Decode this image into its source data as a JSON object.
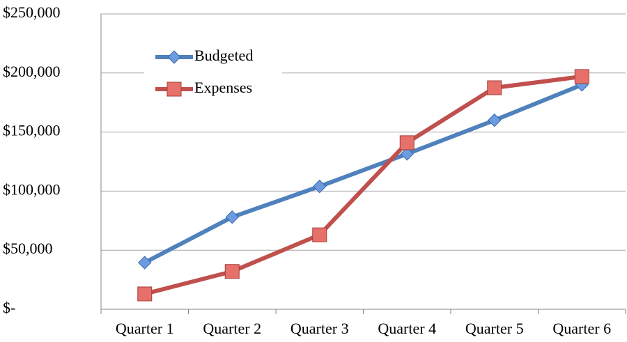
{
  "chart_data": {
    "type": "line",
    "categories": [
      "Quarter 1",
      "Quarter 2",
      "Quarter 3",
      "Quarter 4",
      "Quarter 5",
      "Quarter 6"
    ],
    "series": [
      {
        "name": "Budgeted",
        "color": "#4f81bd",
        "marker": "diamond",
        "values": [
          39500,
          78000,
          104000,
          131500,
          160000,
          190000
        ]
      },
      {
        "name": "Expenses",
        "color": "#c0504d",
        "marker": "square",
        "values": [
          13000,
          32000,
          63000,
          141000,
          187500,
          197000
        ]
      }
    ],
    "ylim": [
      0,
      250000
    ],
    "yticks": [
      {
        "value": 0,
        "label": "$-"
      },
      {
        "value": 50000,
        "label": "$50,000"
      },
      {
        "value": 100000,
        "label": "$100,000"
      },
      {
        "value": 150000,
        "label": "$150,000"
      },
      {
        "value": 200000,
        "label": "$200,000"
      },
      {
        "value": 250000,
        "label": "$250,000"
      }
    ],
    "grid": true,
    "legend": "upper left"
  }
}
